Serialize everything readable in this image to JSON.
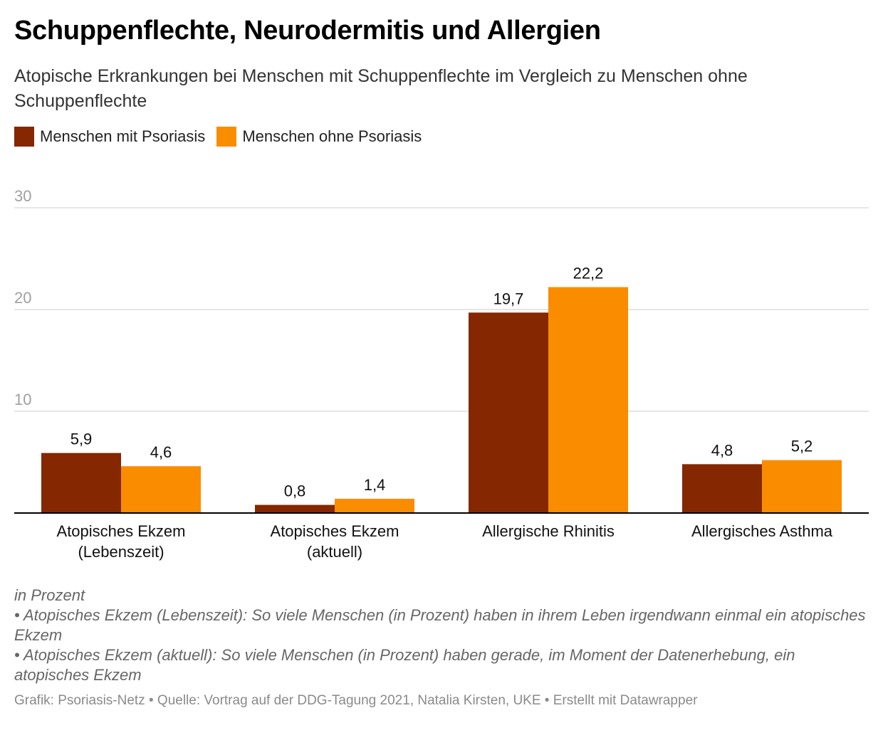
{
  "title": "Schuppenflechte, Neurodermitis und Allergien",
  "subtitle": "Atopische Erkrankungen bei Menschen mit Schuppenflechte im Vergleich zu Menschen ohne Schuppenflechte",
  "colors": {
    "series1": "#852700",
    "series2": "#fa8c00",
    "grid": "#dddddd",
    "axis": "#000000",
    "tick": "#a0a0a0"
  },
  "chart_data": {
    "type": "bar",
    "categories": [
      [
        "Atopisches Ekzem",
        "(Lebenszeit)"
      ],
      [
        "Atopisches Ekzem",
        "(aktuell)"
      ],
      [
        "Allergische Rhinitis"
      ],
      [
        "Allergisches Asthma"
      ]
    ],
    "series": [
      {
        "name": "Menschen mit Psoriasis",
        "values": [
          5.9,
          0.8,
          19.7,
          4.8
        ],
        "labels": [
          "5,9",
          "0,8",
          "19,7",
          "4,8"
        ]
      },
      {
        "name": "Menschen ohne Psoriasis",
        "values": [
          4.6,
          1.4,
          22.2,
          5.2
        ],
        "labels": [
          "4,6",
          "1,4",
          "22,2",
          "5,2"
        ]
      }
    ],
    "yticks": [
      10,
      20,
      30
    ],
    "ylim": [
      0,
      30
    ],
    "grid": true,
    "legend": "top-left"
  },
  "notes": [
    "in Prozent",
    "• Atopisches Ekzem (Lebenszeit): So viele Menschen (in Prozent) haben in ihrem Leben irgendwann einmal ein atopisches Ekzem",
    "• Atopisches Ekzem (aktuell): So viele Menschen (in Prozent) haben gerade, im Moment der Datenerhebung, ein atopisches Ekzem"
  ],
  "credit": "Grafik: Psoriasis-Netz • Quelle: Vortrag auf der DDG-Tagung 2021, Natalia Kirsten, UKE • Erstellt mit Datawrapper"
}
